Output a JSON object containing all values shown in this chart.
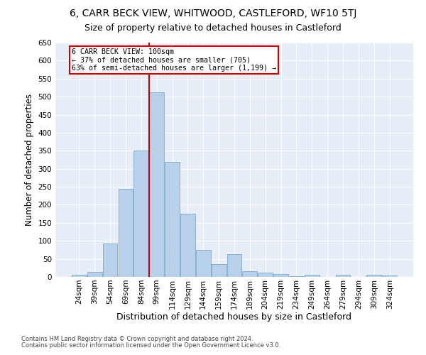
{
  "title": "6, CARR BECK VIEW, WHITWOOD, CASTLEFORD, WF10 5TJ",
  "subtitle": "Size of property relative to detached houses in Castleford",
  "xlabel": "Distribution of detached houses by size in Castleford",
  "ylabel": "Number of detached properties",
  "footnote1": "Contains HM Land Registry data © Crown copyright and database right 2024.",
  "footnote2": "Contains public sector information licensed under the Open Government Licence v3.0.",
  "categories": [
    "24sqm",
    "39sqm",
    "54sqm",
    "69sqm",
    "84sqm",
    "99sqm",
    "114sqm",
    "129sqm",
    "144sqm",
    "159sqm",
    "174sqm",
    "189sqm",
    "204sqm",
    "219sqm",
    "234sqm",
    "249sqm",
    "264sqm",
    "279sqm",
    "294sqm",
    "309sqm",
    "324sqm"
  ],
  "values": [
    5,
    13,
    92,
    245,
    350,
    513,
    320,
    175,
    75,
    35,
    63,
    15,
    11,
    7,
    2,
    5,
    0,
    6,
    0,
    5,
    3
  ],
  "bar_color": "#b8d0ea",
  "bar_edge_color": "#6a9fc8",
  "vline_color": "#cc0000",
  "annotation_text": "6 CARR BECK VIEW: 100sqm\n← 37% of detached houses are smaller (705)\n63% of semi-detached houses are larger (1,199) →",
  "annotation_box_color": "#cc0000",
  "ylim": [
    0,
    650
  ],
  "yticks": [
    0,
    50,
    100,
    150,
    200,
    250,
    300,
    350,
    400,
    450,
    500,
    550,
    600,
    650
  ],
  "plot_bg_color": "#e8eef8",
  "title_fontsize": 10,
  "subtitle_fontsize": 9,
  "tick_fontsize": 7.5,
  "ylabel_fontsize": 8.5,
  "xlabel_fontsize": 9
}
